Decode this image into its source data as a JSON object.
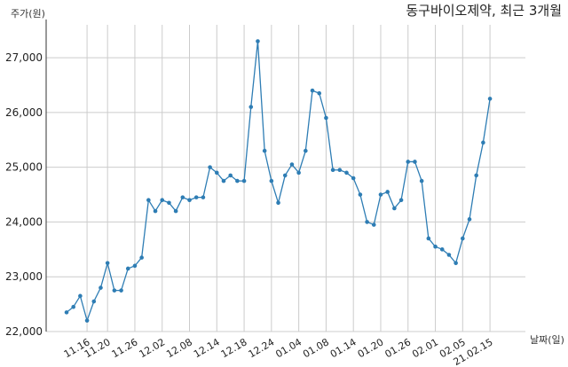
{
  "chart_data": {
    "type": "line",
    "title": "동구바이오제약, 최근 3개월",
    "ylabel": "주가(원)",
    "xlabel": "날짜(일)",
    "ylim": [
      22000,
      27600
    ],
    "yticks": [
      22000,
      23000,
      24000,
      25000,
      26000,
      27000
    ],
    "ytick_labels": [
      "22,000",
      "23,000",
      "24,000",
      "25,000",
      "26,000",
      "27,000"
    ],
    "xtick_labels": [
      "11.16",
      "11.20",
      "11.26",
      "12.02",
      "12.08",
      "12.14",
      "12.18",
      "12.24",
      "01.04",
      "01.08",
      "01.14",
      "01.20",
      "01.26",
      "02.01",
      "02.05",
      "21.02.15"
    ],
    "xtick_index": [
      3,
      6,
      10,
      14,
      18,
      22,
      26,
      30,
      34,
      38,
      42,
      46,
      50,
      54,
      58,
      62
    ],
    "grid": true,
    "values": [
      22350,
      22450,
      22650,
      22200,
      22550,
      22800,
      23250,
      22750,
      22750,
      23150,
      23200,
      23350,
      24400,
      24200,
      24400,
      24350,
      24200,
      24450,
      24400,
      24450,
      24450,
      25000,
      24900,
      24750,
      24850,
      24750,
      24750,
      26100,
      27300,
      25300,
      24750,
      24350,
      24850,
      25050,
      24900,
      25300,
      26400,
      26350,
      25900,
      24950,
      24950,
      24900,
      24800,
      24500,
      24000,
      23950,
      24500,
      24550,
      24250,
      24400,
      25100,
      25100,
      24750,
      23700,
      23550,
      23500,
      23400,
      23250,
      23700,
      24050,
      24850,
      25450,
      26250
    ]
  }
}
